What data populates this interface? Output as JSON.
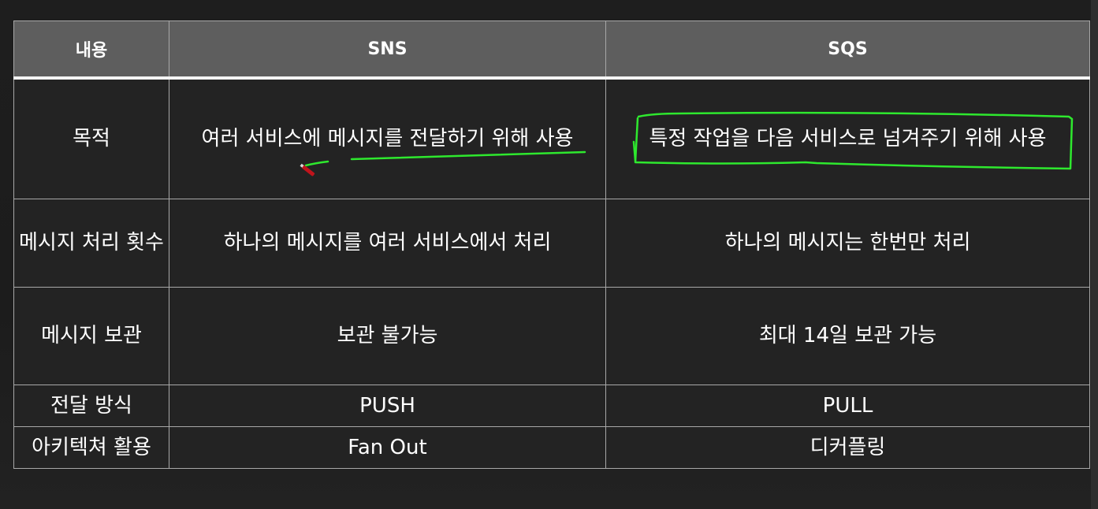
{
  "table": {
    "headers": [
      "내용",
      "SNS",
      "SQS"
    ],
    "rows": [
      {
        "label": "목적",
        "sns": "여러 서비스에 메시지를 전달하기 위해 사용",
        "sqs": "특정 작업을 다음 서비스로 넘겨주기 위해 사용"
      },
      {
        "label": "메시지 처리 횟수",
        "sns": "하나의 메시지를 여러 서비스에서 처리",
        "sqs": "하나의 메시지는 한번만 처리"
      },
      {
        "label": "메시지 보관",
        "sns": "보관 불가능",
        "sqs": "최대 14일 보관 가능"
      },
      {
        "label": "전달 방식",
        "sns": "PUSH",
        "sqs": "PULL"
      },
      {
        "label": "아키텍쳐 활용",
        "sns": "Fan Out",
        "sqs": "디커플링"
      }
    ]
  },
  "annotation": {
    "highlight_color": "#2ee82e",
    "pen_color": "#c0141c"
  }
}
